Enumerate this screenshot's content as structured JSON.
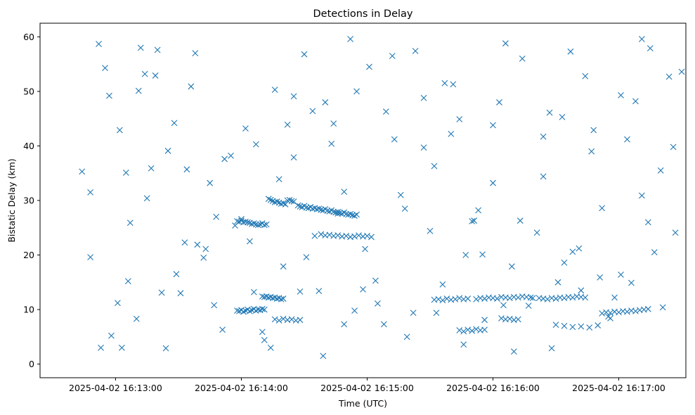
{
  "chart_data": {
    "type": "scatter",
    "title": "Detections in Delay",
    "xlabel": "Time (UTC)",
    "ylabel": "Bistatic Delay (km)",
    "marker": "x",
    "color": "#1f77b4",
    "grid": false,
    "xlim": [
      "2025-04-02 16:12:24",
      "2025-04-02 16:17:32"
    ],
    "ylim": [
      -2.5,
      62.5
    ],
    "x_ticks": [
      "2025-04-02 16:13:00",
      "2025-04-02 16:14:00",
      "2025-04-02 16:15:00",
      "2025-04-02 16:16:00",
      "2025-04-02 16:17:00"
    ],
    "y_ticks": [
      0,
      10,
      20,
      30,
      40,
      50,
      60
    ],
    "x": [
      "16:12:44",
      "16:12:48",
      "16:12:52",
      "16:12:55",
      "16:12:57",
      "16:13:01",
      "16:13:03",
      "16:13:05",
      "16:13:07",
      "16:13:10",
      "16:13:12",
      "16:13:14",
      "16:13:17",
      "16:13:20",
      "16:13:22",
      "16:13:25",
      "16:13:28",
      "16:13:31",
      "16:13:33",
      "16:13:36",
      "16:13:39",
      "16:13:42",
      "16:13:45",
      "16:13:48",
      "16:13:51",
      "16:13:55",
      "16:14:00",
      "16:14:04",
      "16:14:07",
      "16:14:10",
      "16:14:14",
      "16:14:18",
      "16:14:22",
      "16:14:25",
      "16:14:28",
      "16:14:31",
      "16:14:34",
      "16:14:37",
      "16:14:40",
      "16:14:43",
      "16:14:46",
      "16:14:49",
      "16:14:52",
      "16:14:55",
      "16:14:58",
      "16:15:01",
      "16:15:05",
      "16:15:09",
      "16:15:12",
      "16:15:16",
      "16:15:19",
      "16:15:23",
      "16:15:27",
      "16:15:30",
      "16:15:33",
      "16:15:37",
      "16:15:40",
      "16:15:44",
      "16:15:47",
      "16:15:50",
      "16:15:53",
      "16:15:56",
      "16:16:00",
      "16:16:03",
      "16:16:06",
      "16:16:10",
      "16:16:13",
      "16:16:17",
      "16:16:21",
      "16:16:24",
      "16:16:27",
      "16:16:31",
      "16:16:34",
      "16:16:37",
      "16:16:41",
      "16:16:44",
      "16:16:48",
      "16:16:51",
      "16:16:55",
      "16:16:58",
      "16:17:01",
      "16:17:04",
      "16:17:08",
      "16:17:11",
      "16:17:14",
      "16:17:17",
      "16:17:21",
      "16:17:24",
      "16:17:27",
      "16:17:30",
      "16:12:48",
      "16:12:53",
      "16:12:58",
      "16:13:02",
      "16:13:06",
      "16:13:11",
      "16:13:15",
      "16:13:19",
      "16:13:24",
      "16:13:29",
      "16:13:34",
      "16:13:38",
      "16:13:43",
      "16:13:47",
      "16:13:52",
      "16:13:57",
      "16:14:02",
      "16:14:06",
      "16:14:11",
      "16:14:16",
      "16:14:20",
      "16:14:25",
      "16:14:30",
      "16:14:35",
      "16:14:39",
      "16:14:44",
      "16:14:49",
      "16:14:54",
      "16:14:59",
      "16:15:04",
      "16:15:08",
      "16:15:13",
      "16:15:18",
      "16:15:22",
      "16:15:27",
      "16:15:32",
      "16:15:36",
      "16:15:41",
      "16:15:46",
      "16:15:51",
      "16:15:55",
      "16:16:00",
      "16:16:05",
      "16:16:09",
      "16:16:14",
      "16:16:19",
      "16:16:24",
      "16:16:28",
      "16:16:33",
      "16:16:38",
      "16:16:42",
      "16:16:47",
      "16:16:52",
      "16:16:56",
      "16:17:01",
      "16:17:06",
      "16:17:11",
      "16:17:15",
      "16:17:20",
      "16:17:26",
      "16:13:58",
      "16:13:59",
      "16:14:00",
      "16:14:01",
      "16:14:02",
      "16:14:03",
      "16:14:04",
      "16:14:05",
      "16:14:06",
      "16:14:07",
      "16:14:08",
      "16:14:09",
      "16:14:10",
      "16:14:11",
      "16:14:12",
      "16:14:13",
      "16:14:14",
      "16:14:15",
      "16:14:16",
      "16:14:17",
      "16:14:18",
      "16:14:19",
      "16:14:20",
      "16:14:21",
      "16:14:22",
      "16:14:23",
      "16:14:24",
      "16:14:25",
      "16:14:10",
      "16:14:11",
      "16:14:12",
      "16:14:13",
      "16:14:14",
      "16:14:15",
      "16:14:16",
      "16:14:17",
      "16:14:18",
      "16:14:19",
      "16:14:20",
      "16:14:27",
      "16:14:28",
      "16:14:29",
      "16:14:30",
      "16:14:31",
      "16:14:32",
      "16:14:33",
      "16:14:34",
      "16:14:35",
      "16:14:36",
      "16:14:37",
      "16:14:38",
      "16:14:39",
      "16:14:40",
      "16:14:41",
      "16:14:42",
      "16:14:43",
      "16:14:44",
      "16:14:45",
      "16:14:46",
      "16:14:47",
      "16:14:48",
      "16:14:49",
      "16:14:50",
      "16:14:51",
      "16:14:52",
      "16:14:53",
      "16:14:54",
      "16:14:55",
      "16:14:38",
      "16:14:40",
      "16:14:42",
      "16:14:44",
      "16:14:46",
      "16:14:48",
      "16:14:50",
      "16:14:52",
      "16:14:54",
      "16:14:56",
      "16:14:58",
      "16:15:00",
      "16:15:02",
      "16:13:58",
      "16:13:59",
      "16:14:00",
      "16:14:01",
      "16:14:02",
      "16:14:03",
      "16:14:04",
      "16:14:05",
      "16:14:06",
      "16:14:07",
      "16:14:08",
      "16:14:09",
      "16:14:10",
      "16:14:11",
      "16:14:16",
      "16:14:18",
      "16:14:20",
      "16:14:22",
      "16:14:24",
      "16:14:26",
      "16:14:28",
      "16:15:32",
      "16:15:34",
      "16:15:36",
      "16:15:38",
      "16:15:40",
      "16:15:42",
      "16:15:44",
      "16:15:46",
      "16:15:48",
      "16:15:52",
      "16:15:54",
      "16:15:56",
      "16:15:58",
      "16:16:00",
      "16:16:02",
      "16:16:04",
      "16:16:06",
      "16:16:08",
      "16:16:10",
      "16:16:12",
      "16:16:14",
      "16:16:16",
      "16:16:18",
      "16:16:22",
      "16:16:24",
      "16:16:26",
      "16:16:28",
      "16:16:30",
      "16:16:32",
      "16:16:34",
      "16:16:36",
      "16:16:38",
      "16:16:40",
      "16:16:42",
      "16:16:44",
      "16:16:52",
      "16:16:54",
      "16:16:56",
      "16:16:58",
      "16:17:00",
      "16:17:02",
      "16:17:04",
      "16:17:06",
      "16:17:08",
      "16:17:10",
      "16:17:12",
      "16:17:14",
      "16:15:44",
      "16:15:46",
      "16:15:48",
      "16:15:50",
      "16:15:52",
      "16:15:54",
      "16:15:56",
      "16:16:04",
      "16:16:06",
      "16:16:08",
      "16:16:10",
      "16:16:12",
      "16:16:30",
      "16:16:34",
      "16:16:38",
      "16:16:42",
      "16:16:46",
      "16:16:50"
    ],
    "y": [
      35.3,
      19.6,
      58.7,
      54.3,
      49.2,
      11.2,
      3.0,
      35.1,
      25.9,
      8.3,
      58.0,
      53.2,
      35.9,
      57.6,
      13.1,
      39.1,
      44.2,
      13.0,
      22.3,
      50.9,
      21.9,
      19.5,
      33.2,
      27.0,
      6.3,
      38.2,
      26.6,
      22.5,
      40.3,
      5.9,
      3.0,
      33.9,
      43.9,
      49.1,
      13.3,
      19.6,
      46.4,
      13.4,
      48.0,
      40.4,
      27.6,
      7.3,
      59.6,
      50.0,
      13.7,
      54.5,
      11.1,
      46.3,
      56.5,
      31.0,
      5.0,
      57.4,
      39.7,
      24.4,
      9.4,
      51.5,
      42.2,
      44.9,
      20.0,
      26.2,
      28.2,
      8.1,
      33.2,
      48.0,
      58.8,
      2.3,
      26.3,
      10.7,
      24.1,
      41.7,
      46.1,
      15.0,
      18.6,
      57.3,
      21.2,
      52.8,
      42.9,
      15.9,
      8.7,
      12.2,
      16.4,
      41.2,
      48.2,
      59.6,
      26.0,
      20.5,
      10.4,
      52.7,
      24.1,
      53.6,
      31.5,
      3.0,
      5.2,
      42.9,
      15.2,
      50.1,
      30.4,
      52.9,
      2.9,
      16.5,
      35.7,
      57.0,
      21.1,
      10.8,
      37.6,
      25.4,
      43.2,
      13.2,
      4.4,
      50.3,
      17.9,
      37.9,
      56.8,
      23.5,
      1.5,
      44.1,
      31.6,
      9.8,
      21.1,
      15.3,
      7.3,
      41.2,
      28.5,
      9.4,
      48.8,
      36.3,
      14.6,
      51.3,
      3.6,
      26.3,
      20.1,
      43.8,
      10.8,
      17.9,
      56.0,
      12.1,
      34.4,
      2.9,
      45.3,
      20.6,
      13.5,
      39.0,
      28.6,
      8.4,
      49.3,
      14.9,
      30.9,
      57.9,
      35.5,
      39.8,
      26.2,
      26.1,
      26.3,
      26.0,
      26.1,
      26.0,
      25.9,
      25.7,
      25.8,
      25.6,
      25.5,
      25.6,
      25.8,
      25.5,
      25.6,
      30.3,
      30.1,
      29.9,
      29.7,
      29.8,
      29.6,
      29.4,
      29.5,
      29.3,
      30.0,
      30.1,
      29.9,
      29.8,
      12.4,
      12.3,
      12.4,
      12.2,
      12.3,
      12.1,
      12.2,
      12.0,
      12.1,
      11.9,
      12.0,
      29.1,
      28.9,
      28.8,
      29.0,
      28.7,
      28.6,
      28.8,
      28.5,
      28.6,
      28.4,
      28.5,
      28.3,
      28.2,
      28.4,
      28.1,
      28.0,
      28.2,
      27.9,
      27.8,
      27.9,
      27.7,
      27.6,
      27.8,
      27.5,
      27.4,
      27.5,
      27.3,
      27.2,
      27.4,
      23.8,
      23.6,
      23.7,
      23.5,
      23.6,
      23.4,
      23.5,
      23.3,
      23.4,
      23.6,
      23.4,
      23.5,
      23.3,
      9.8,
      9.7,
      9.9,
      9.6,
      9.8,
      10.0,
      9.7,
      9.9,
      10.1,
      9.8,
      10.0,
      9.9,
      10.1,
      10.0,
      8.2,
      8.0,
      8.3,
      8.1,
      8.2,
      8.0,
      8.1,
      11.8,
      11.9,
      11.7,
      12.0,
      11.8,
      11.9,
      12.1,
      11.9,
      12.0,
      11.9,
      12.1,
      12.0,
      12.2,
      12.1,
      12.0,
      12.3,
      12.2,
      12.1,
      12.3,
      12.2,
      12.4,
      12.3,
      12.2,
      12.1,
      12.0,
      11.9,
      12.1,
      12.0,
      12.2,
      12.1,
      12.3,
      12.2,
      12.4,
      12.3,
      12.2,
      9.3,
      9.5,
      9.4,
      9.6,
      9.5,
      9.7,
      9.6,
      9.8,
      9.7,
      9.9,
      10.0,
      10.1,
      6.2,
      6.0,
      6.3,
      6.1,
      6.4,
      6.2,
      6.3,
      8.4,
      8.2,
      8.3,
      8.1,
      8.2,
      7.2,
      7.0,
      6.8,
      6.9,
      6.7,
      7.1
    ]
  }
}
